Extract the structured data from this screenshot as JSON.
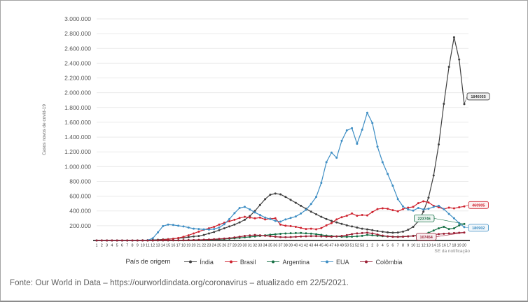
{
  "chart_data": {
    "type": "line",
    "title": "",
    "xlabel": "SE da notificação",
    "ylabel": "Casos novos de covid-19",
    "ylim": [
      0,
      3000000
    ],
    "grid": true,
    "legend_position": "bottom",
    "legend_title": "País de origem",
    "yticks": [
      "200.000",
      "400.000",
      "600.000",
      "800.000",
      "1.000.000",
      "1.200.000",
      "1.400.000",
      "1.600.000",
      "1.800.000",
      "2.000.000",
      "2.200.000",
      "2.400.000",
      "2.600.000",
      "2.800.000",
      "3.000.000"
    ],
    "x_labels": [
      "1",
      "2",
      "3",
      "4",
      "5",
      "6",
      "7",
      "8",
      "9",
      "10",
      "11",
      "12",
      "13",
      "14",
      "15",
      "16",
      "17",
      "18",
      "19",
      "20",
      "21",
      "22",
      "23",
      "24",
      "25",
      "26",
      "27",
      "28",
      "29",
      "30",
      "31",
      "32",
      "33",
      "34",
      "35",
      "36",
      "37",
      "38",
      "39",
      "40",
      "41",
      "42",
      "43",
      "44",
      "45",
      "46",
      "47",
      "48",
      "49",
      "50",
      "51",
      "52",
      "53",
      "1",
      "2",
      "3",
      "4",
      "5",
      "6",
      "7",
      "8",
      "9",
      "10",
      "11",
      "12",
      "13",
      "14",
      "15",
      "16",
      "17",
      "18",
      "19",
      "20"
    ],
    "series": [
      {
        "name": "Índia",
        "color": "#3f3f3f",
        "end_label": "1846055",
        "values": [
          0,
          0,
          0,
          0,
          0,
          0,
          0,
          500,
          1000,
          2000,
          4000,
          7000,
          10000,
          14000,
          18000,
          24000,
          30000,
          37000,
          45000,
          55000,
          60000,
          75000,
          95000,
          115000,
          140000,
          165000,
          190000,
          215000,
          245000,
          280000,
          330000,
          400000,
          480000,
          560000,
          620000,
          635000,
          625000,
          590000,
          550000,
          510000,
          470000,
          430000,
          390000,
          355000,
          320000,
          290000,
          265000,
          245000,
          225000,
          205000,
          190000,
          175000,
          160000,
          150000,
          140000,
          128000,
          118000,
          110000,
          105000,
          108000,
          120000,
          145000,
          185000,
          260000,
          390000,
          580000,
          880000,
          1300000,
          1850000,
          2350000,
          2750000,
          2450000,
          1846055
        ]
      },
      {
        "name": "Brasil",
        "color": "#cf2430",
        "end_label": "460905",
        "values": [
          0,
          0,
          0,
          0,
          0,
          0,
          0,
          0,
          0,
          0,
          0,
          1000,
          4000,
          9000,
          15000,
          23000,
          34000,
          50000,
          70000,
          95000,
          120000,
          145000,
          165000,
          185000,
          215000,
          240000,
          260000,
          280000,
          305000,
          320000,
          310000,
          300000,
          310000,
          285000,
          295000,
          300000,
          215000,
          200000,
          195000,
          185000,
          170000,
          155000,
          160000,
          152000,
          168000,
          205000,
          235000,
          285000,
          315000,
          335000,
          365000,
          335000,
          345000,
          340000,
          385000,
          425000,
          435000,
          430000,
          410000,
          395000,
          425000,
          445000,
          455000,
          505000,
          530000,
          515000,
          470000,
          450000,
          425000,
          445000,
          435000,
          450000,
          460905
        ]
      },
      {
        "name": "Argentina",
        "color": "#156f44",
        "end_label": "223746",
        "values": [
          0,
          0,
          0,
          0,
          0,
          0,
          0,
          0,
          0,
          0,
          0,
          500,
          1000,
          1200,
          1500,
          1800,
          2200,
          2800,
          3500,
          4500,
          6000,
          8000,
          10000,
          13000,
          16000,
          20000,
          25000,
          30000,
          36000,
          42000,
          48000,
          55000,
          62000,
          70000,
          78000,
          84000,
          90000,
          95000,
          98000,
          100000,
          102000,
          97000,
          92000,
          85000,
          76000,
          66000,
          60000,
          55000,
          51000,
          49000,
          52000,
          57000,
          63000,
          76000,
          70000,
          64000,
          59000,
          55000,
          52000,
          51000,
          53000,
          57000,
          63000,
          72000,
          86000,
          104000,
          135000,
          165000,
          185000,
          155000,
          165000,
          205000,
          223746
        ]
      },
      {
        "name": "EUA",
        "color": "#3e8ec4",
        "end_label": "180902",
        "values": [
          0,
          0,
          0,
          0,
          0,
          0,
          0,
          0,
          0,
          500,
          3000,
          30000,
          110000,
          195000,
          215000,
          210000,
          200000,
          190000,
          175000,
          160000,
          155000,
          150000,
          148000,
          155000,
          175000,
          220000,
          290000,
          370000,
          440000,
          455000,
          420000,
          380000,
          345000,
          310000,
          290000,
          265000,
          255000,
          285000,
          305000,
          325000,
          365000,
          415000,
          495000,
          590000,
          780000,
          1060000,
          1190000,
          1120000,
          1350000,
          1490000,
          1520000,
          1310000,
          1500000,
          1730000,
          1590000,
          1270000,
          1060000,
          900000,
          740000,
          560000,
          460000,
          420000,
          405000,
          440000,
          420000,
          430000,
          455000,
          470000,
          425000,
          360000,
          300000,
          235000,
          180902
        ]
      },
      {
        "name": "Colômbia",
        "color": "#9b1f35",
        "end_label": "107454",
        "values": [
          0,
          0,
          0,
          0,
          0,
          0,
          0,
          0,
          0,
          0,
          0,
          300,
          700,
          1000,
          1500,
          2000,
          2800,
          3800,
          5000,
          6500,
          8500,
          11000,
          13500,
          17000,
          21000,
          26000,
          32000,
          41000,
          51000,
          61000,
          69000,
          74000,
          70000,
          64000,
          58000,
          51000,
          46000,
          45000,
          46000,
          50000,
          54000,
          57000,
          59000,
          59000,
          56000,
          53000,
          51000,
          56000,
          62000,
          72000,
          86000,
          96000,
          101000,
          106000,
          96000,
          81000,
          66000,
          56000,
          50000,
          48000,
          51000,
          56000,
          61000,
          66000,
          71000,
          76000,
          81000,
          86000,
          91000,
          96000,
          100000,
          104000,
          107454
        ]
      }
    ]
  },
  "legend": {
    "title": "País de origem"
  },
  "footer": {
    "text": "Fonte: Our World in Data – https://ourworldindata.org/coronavirus – atualizado em 22/5/2021."
  }
}
